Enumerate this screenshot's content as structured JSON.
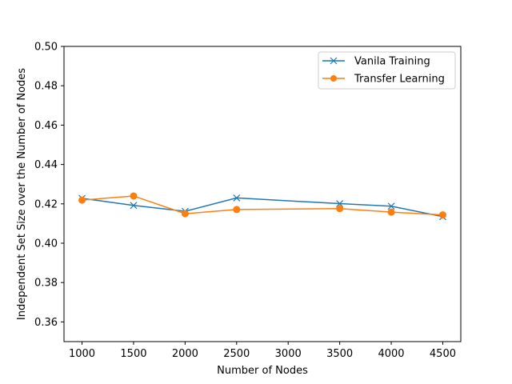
{
  "chart_data": {
    "type": "line",
    "title": "",
    "xlabel": "Number of Nodes",
    "ylabel": "Independent Set Size over the Number of Nodes",
    "x": [
      1000,
      1500,
      2000,
      2500,
      3500,
      4000,
      4500
    ],
    "xticks": [
      "1000",
      "1500",
      "2000",
      "2500",
      "3000",
      "3500",
      "4000",
      "4500"
    ],
    "xtick_values": [
      1000,
      1500,
      2000,
      2500,
      3000,
      3500,
      4000,
      4500
    ],
    "yticks": [
      "0.36",
      "0.38",
      "0.40",
      "0.42",
      "0.44",
      "0.46",
      "0.48",
      "0.50"
    ],
    "ytick_values": [
      0.36,
      0.38,
      0.4,
      0.42,
      0.44,
      0.46,
      0.48,
      0.5
    ],
    "xlim": [
      825,
      4675
    ],
    "ylim": [
      0.35,
      0.5
    ],
    "grid": false,
    "legend_position": "top-right",
    "series": [
      {
        "name": "Vanila Training",
        "color": "#1f77b4",
        "marker": "x",
        "values": [
          0.4228,
          0.4192,
          0.4162,
          0.423,
          0.4201,
          0.4188,
          0.4135
        ]
      },
      {
        "name": "Transfer Learning",
        "color": "#ff7f0e",
        "marker": "o",
        "values": [
          0.4219,
          0.424,
          0.415,
          0.4171,
          0.4176,
          0.4158,
          0.4144
        ]
      }
    ]
  }
}
